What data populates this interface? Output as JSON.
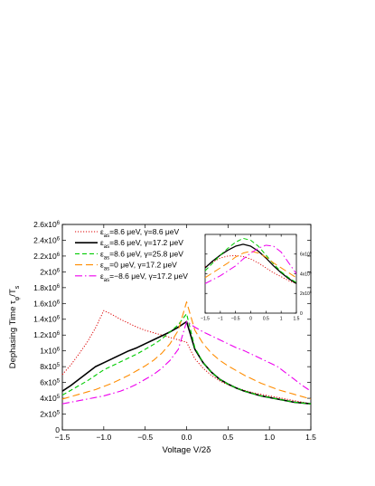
{
  "chart_data": [
    {
      "type": "line",
      "panel": "main",
      "xlabel": "Voltage V/2δ",
      "ylabel": "Dephasing Time τ",
      "ylabel_sub": "φ",
      "ylabel_suffix": "/T",
      "ylabel_suffix_sub": "s",
      "xlim": [
        -1.5,
        1.5
      ],
      "ylim": [
        0,
        2600000
      ],
      "x_ticks": [
        -1.5,
        -1.0,
        -0.5,
        0.0,
        0.5,
        1.0,
        1.5
      ],
      "x_tick_labels": [
        "−1.5",
        "−1.0",
        "−0.5",
        "0.0",
        "0.5",
        "1.0",
        "1.5"
      ],
      "y_ticks": [
        0,
        200000,
        400000,
        600000,
        800000,
        1000000,
        1200000,
        1400000,
        1600000,
        1800000,
        2000000,
        2200000,
        2400000,
        2600000
      ],
      "y_tick_labels": [
        {
          "base": "0",
          "exp": ""
        },
        {
          "base": "2x10",
          "exp": "5"
        },
        {
          "base": "4x10",
          "exp": "5"
        },
        {
          "base": "6x10",
          "exp": "5"
        },
        {
          "base": "8x10",
          "exp": "5"
        },
        {
          "base": "1x10",
          "exp": "6"
        },
        {
          "base": "1.2x10",
          "exp": "6"
        },
        {
          "base": "1.4x10",
          "exp": "6"
        },
        {
          "base": "1.6x10",
          "exp": "6"
        },
        {
          "base": "1.8x10",
          "exp": "6"
        },
        {
          "base": "2x10",
          "exp": "6"
        },
        {
          "base": "2.2x10",
          "exp": "6"
        },
        {
          "base": "2.4x10",
          "exp": "6"
        },
        {
          "base": "2.6x10",
          "exp": "6"
        }
      ],
      "grid": false,
      "legend_position": "top-left",
      "series": [
        {
          "legend": {
            "eps": "ε",
            "sub": "as",
            "rest": "=8.6 μeV, γ=8.6 μeV"
          },
          "color": "#dd0000",
          "dash": "1.2,1.8",
          "width": 1.0,
          "x": [
            -1.5,
            -1.4,
            -1.3,
            -1.2,
            -1.1,
            -1.0,
            -0.9,
            -0.8,
            -0.7,
            -0.6,
            -0.5,
            -0.4,
            -0.3,
            -0.2,
            -0.1,
            0.0,
            0.1,
            0.2,
            0.3,
            0.4,
            0.5,
            0.6,
            0.7,
            0.8,
            0.9,
            1.0,
            1.1,
            1.2,
            1.3,
            1.4,
            1.5
          ],
          "y": [
            700000,
            820000,
            960000,
            1110000,
            1290000,
            1510000,
            1460000,
            1400000,
            1350000,
            1300000,
            1260000,
            1230000,
            1200000,
            1170000,
            1140000,
            1110000,
            900000,
            780000,
            690000,
            620000,
            570000,
            530000,
            500000,
            470000,
            450000,
            430000,
            410000,
            390000,
            370000,
            350000,
            330000
          ]
        },
        {
          "legend": {
            "eps": "ε",
            "sub": "as",
            "rest": "=8.6 μeV, γ=17.2 μeV"
          },
          "color": "#000000",
          "dash": "",
          "width": 1.6,
          "x": [
            -1.5,
            -1.4,
            -1.3,
            -1.2,
            -1.1,
            -1.0,
            -0.9,
            -0.8,
            -0.7,
            -0.6,
            -0.5,
            -0.4,
            -0.3,
            -0.2,
            -0.1,
            0.0,
            0.1,
            0.2,
            0.3,
            0.4,
            0.5,
            0.6,
            0.7,
            0.8,
            0.9,
            1.0,
            1.1,
            1.2,
            1.3,
            1.4,
            1.5
          ],
          "y": [
            490000,
            560000,
            640000,
            720000,
            800000,
            850000,
            900000,
            950000,
            1000000,
            1040000,
            1090000,
            1140000,
            1190000,
            1240000,
            1300000,
            1370000,
            1020000,
            850000,
            730000,
            640000,
            580000,
            530000,
            490000,
            460000,
            430000,
            410000,
            390000,
            370000,
            350000,
            340000,
            330000
          ]
        },
        {
          "legend": {
            "eps": "ε",
            "sub": "as",
            "rest": "=8.6 μeV, γ=25.8 μeV"
          },
          "color": "#00cc00",
          "dash": "5,3",
          "width": 1.1,
          "x": [
            -1.5,
            -1.4,
            -1.3,
            -1.2,
            -1.1,
            -1.0,
            -0.9,
            -0.8,
            -0.7,
            -0.6,
            -0.5,
            -0.4,
            -0.3,
            -0.2,
            -0.1,
            0.0,
            0.1,
            0.2,
            0.3,
            0.4,
            0.5,
            0.6,
            0.7,
            0.8,
            0.9,
            1.0,
            1.1,
            1.2,
            1.3,
            1.4,
            1.5
          ],
          "y": [
            440000,
            500000,
            560000,
            620000,
            690000,
            760000,
            810000,
            860000,
            910000,
            960000,
            1020000,
            1080000,
            1150000,
            1240000,
            1330000,
            1470000,
            1040000,
            850000,
            730000,
            640000,
            580000,
            530000,
            490000,
            460000,
            430000,
            410000,
            390000,
            370000,
            350000,
            340000,
            330000
          ]
        },
        {
          "legend": {
            "eps": "ε",
            "sub": "as",
            "rest": "=0 μeV, γ=17.2 μeV"
          },
          "color": "#ff8c00",
          "dash": "8,4",
          "width": 1.1,
          "x": [
            -1.5,
            -1.4,
            -1.3,
            -1.2,
            -1.1,
            -1.0,
            -0.9,
            -0.8,
            -0.7,
            -0.6,
            -0.5,
            -0.4,
            -0.3,
            -0.2,
            -0.1,
            0.0,
            0.1,
            0.2,
            0.3,
            0.4,
            0.5,
            0.6,
            0.7,
            0.8,
            0.9,
            1.0,
            1.1,
            1.2,
            1.3,
            1.4,
            1.5
          ],
          "y": [
            390000,
            420000,
            450000,
            480000,
            510000,
            550000,
            590000,
            640000,
            690000,
            750000,
            810000,
            880000,
            970000,
            1090000,
            1260000,
            1620000,
            1260000,
            1090000,
            970000,
            880000,
            810000,
            750000,
            690000,
            640000,
            590000,
            550000,
            510000,
            480000,
            450000,
            420000,
            390000
          ]
        },
        {
          "legend": {
            "eps": "ε",
            "sub": "as",
            "rest": "=−8.6 μeV, γ=17.2 μeV"
          },
          "color": "#ee00ee",
          "dash": "8,3,1.5,3",
          "width": 1.1,
          "x": [
            -1.5,
            -1.4,
            -1.3,
            -1.2,
            -1.1,
            -1.0,
            -0.9,
            -0.8,
            -0.7,
            -0.6,
            -0.5,
            -0.4,
            -0.3,
            -0.2,
            -0.1,
            0.0,
            0.1,
            0.2,
            0.3,
            0.4,
            0.5,
            0.6,
            0.7,
            0.8,
            0.9,
            1.0,
            1.1,
            1.2,
            1.3,
            1.4,
            1.5
          ],
          "y": [
            330000,
            350000,
            370000,
            390000,
            410000,
            430000,
            460000,
            490000,
            530000,
            580000,
            640000,
            700000,
            780000,
            880000,
            1020000,
            1370000,
            1300000,
            1240000,
            1190000,
            1140000,
            1090000,
            1040000,
            1000000,
            950000,
            900000,
            850000,
            800000,
            720000,
            640000,
            560000,
            490000
          ]
        }
      ]
    },
    {
      "type": "line",
      "panel": "inset",
      "xlim": [
        -1.5,
        1.5
      ],
      "ylim": [
        0,
        800000
      ],
      "x_ticks": [
        -1.5,
        -1.0,
        -0.5,
        0.0,
        0.5,
        1.0,
        1.5
      ],
      "x_tick_labels": [
        "−1.5",
        "−1",
        "−0.5",
        "0",
        "0.5",
        "1",
        "1.5"
      ],
      "y_ticks": [
        0,
        200000,
        400000,
        600000
      ],
      "y_tick_labels": [
        {
          "base": "0",
          "exp": ""
        },
        {
          "base": "2x10",
          "exp": "5"
        },
        {
          "base": "4x10",
          "exp": "5"
        },
        {
          "base": "6x10",
          "exp": "5"
        }
      ],
      "series": [
        {
          "color": "#dd0000",
          "dash": "1.2,1.8",
          "width": 0.9,
          "x": [
            -1.5,
            -1.25,
            -1.0,
            -0.75,
            -0.5,
            -0.25,
            0.0,
            0.25,
            0.5,
            0.75,
            1.0,
            1.25,
            1.5
          ],
          "y": [
            470000,
            520000,
            560000,
            580000,
            585000,
            575000,
            550000,
            510000,
            460000,
            410000,
            370000,
            330000,
            300000
          ]
        },
        {
          "color": "#000000",
          "dash": "",
          "width": 1.3,
          "x": [
            -1.5,
            -1.25,
            -1.0,
            -0.75,
            -0.5,
            -0.25,
            0.0,
            0.25,
            0.5,
            0.75,
            1.0,
            1.25,
            1.5
          ],
          "y": [
            460000,
            530000,
            590000,
            640000,
            680000,
            700000,
            680000,
            630000,
            560000,
            480000,
            410000,
            350000,
            300000
          ]
        },
        {
          "color": "#00cc00",
          "dash": "5,3",
          "width": 1.0,
          "x": [
            -1.5,
            -1.25,
            -1.0,
            -0.75,
            -0.5,
            -0.25,
            0.0,
            0.25,
            0.5,
            0.75,
            1.0,
            1.25,
            1.5
          ],
          "y": [
            430000,
            510000,
            590000,
            660000,
            720000,
            760000,
            740000,
            680000,
            590000,
            500000,
            420000,
            360000,
            310000
          ]
        },
        {
          "color": "#ff8c00",
          "dash": "8,4",
          "width": 1.0,
          "x": [
            -1.5,
            -1.25,
            -1.0,
            -0.75,
            -0.5,
            -0.25,
            0.0,
            0.25,
            0.5,
            0.75,
            1.0,
            1.25,
            1.5
          ],
          "y": [
            360000,
            410000,
            460000,
            510000,
            570000,
            610000,
            630000,
            610000,
            570000,
            510000,
            460000,
            410000,
            360000
          ]
        },
        {
          "color": "#ee00ee",
          "dash": "8,3,1.5,3",
          "width": 1.0,
          "x": [
            -1.5,
            -1.25,
            -1.0,
            -0.75,
            -0.5,
            -0.25,
            0.0,
            0.25,
            0.5,
            0.75,
            1.0,
            1.25,
            1.5
          ],
          "y": [
            300000,
            340000,
            380000,
            430000,
            480000,
            550000,
            610000,
            660000,
            690000,
            680000,
            620000,
            510000,
            400000
          ]
        }
      ]
    }
  ]
}
